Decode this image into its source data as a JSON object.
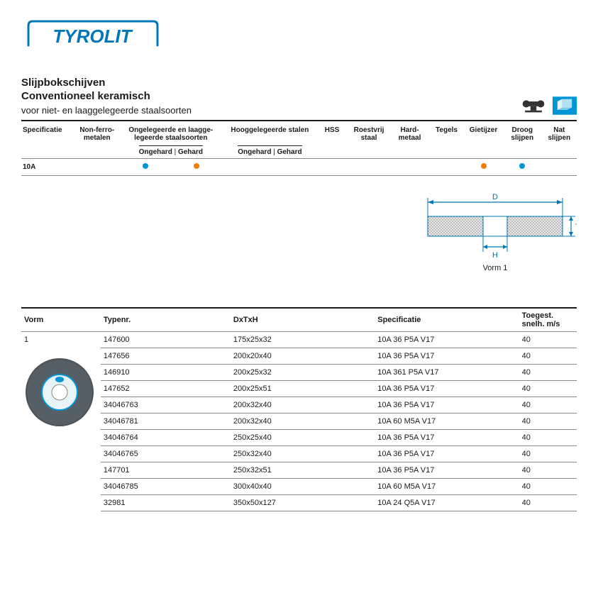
{
  "brand": "TYROLIT",
  "colors": {
    "brand_blue": "#0077b6",
    "dot_blue": "#0096d6",
    "dot_orange": "#f57c00",
    "text": "#1a1a1a",
    "rule": "#888888"
  },
  "header": {
    "title1": "Slijpbokschijven",
    "title2": "Conventioneel keramisch",
    "subtitle": "voor niet- en laaggelegeerde staalsoorten"
  },
  "categories": {
    "columns": [
      "Specificatie",
      "Non-ferro-metalen",
      "Ongelegeerde en laagge-legeerde staalsoorten",
      "Hooggelegeerde stalen",
      "HSS",
      "Roestvrij staal",
      "Hard-metaal",
      "Tegels",
      "Gietijzer",
      "Droog slijpen",
      "Nat slijpen"
    ],
    "sub_ongehard": "Ongehard",
    "sub_gehard": "Gehard",
    "row_spec": "10A",
    "dots": {
      "col2_ongehard": "#0096d6",
      "col2_gehard": "#f57c00",
      "gietijzer": "#f57c00",
      "droog": "#0096d6"
    }
  },
  "diagram": {
    "label_D": "D",
    "label_H": "H",
    "label_T": "T",
    "caption": "Vorm 1"
  },
  "product_table": {
    "headers": {
      "vorm": "Vorm",
      "typenr": "Typenr.",
      "dxtxh": "DxTxH",
      "spec": "Specificatie",
      "speed": "Toegest. snelh. m/s"
    },
    "vorm_value": "1",
    "rows": [
      {
        "typenr": "147600",
        "dxtxh": "175x25x32",
        "spec": "10A 36 P5A V17",
        "speed": "40"
      },
      {
        "typenr": "147656",
        "dxtxh": "200x20x40",
        "spec": "10A 36 P5A V17",
        "speed": "40"
      },
      {
        "typenr": "146910",
        "dxtxh": "200x25x32",
        "spec": "10A 361 P5A V17",
        "speed": "40"
      },
      {
        "typenr": "147652",
        "dxtxh": "200x25x51",
        "spec": "10A 36 P5A V17",
        "speed": "40"
      },
      {
        "typenr": "34046763",
        "dxtxh": "200x32x40",
        "spec": "10A 36 P5A V17",
        "speed": "40"
      },
      {
        "typenr": "34046781",
        "dxtxh": "200x32x40",
        "spec": "10A 60 M5A V17",
        "speed": "40"
      },
      {
        "typenr": "34046764",
        "dxtxh": "250x25x40",
        "spec": "10A 36 P5A V17",
        "speed": "40"
      },
      {
        "typenr": "34046765",
        "dxtxh": "250x32x40",
        "spec": "10A 36 P5A V17",
        "speed": "40"
      },
      {
        "typenr": "147701",
        "dxtxh": "250x32x51",
        "spec": "10A 36 P5A V17",
        "speed": "40"
      },
      {
        "typenr": "34046785",
        "dxtxh": "300x40x40",
        "spec": "10A 60 M5A V17",
        "speed": "40"
      },
      {
        "typenr": "32981",
        "dxtxh": "350x50x127",
        "spec": "10A 24 Q5A V17",
        "speed": "40"
      }
    ]
  }
}
